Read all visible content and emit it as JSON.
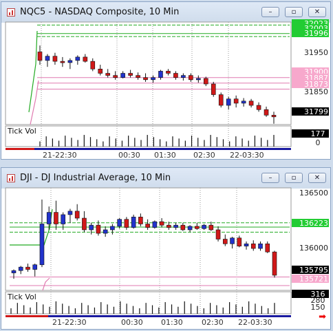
{
  "windows": [
    {
      "id": "nq",
      "title": "NQC5 - NASDAQ Composite, 10 Min",
      "buttons": {
        "minimize": "–",
        "restore": "▫",
        "close": "✕"
      },
      "price_labels": [
        "32023",
        "32003",
        "31996",
        "31950",
        "31900",
        "31887",
        "31873",
        "31850",
        "31799"
      ],
      "volume_labels": {
        "header": "Tick Vol",
        "current": "177",
        "zero": "0"
      },
      "time_labels": [
        "21-22:30",
        "00:30",
        "01:30",
        "02:30",
        "22-03:30"
      ]
    },
    {
      "id": "dji",
      "title": "DJI - DJ Industrial Average, 10 Min",
      "buttons": {
        "minimize": "–",
        "restore": "▫",
        "close": "✕"
      },
      "price_labels": [
        "136500",
        "136223",
        "136000",
        "135795",
        "135721"
      ],
      "volume_labels": {
        "header": "Tick Vol",
        "current": "316",
        "upper": "280",
        "mid": "150"
      },
      "time_labels": [
        "21-22:30",
        "00:30",
        "01:30",
        "02:30",
        "22-03:30"
      ]
    }
  ],
  "chart_data": [
    {
      "type": "candlestick",
      "title": "NQC5 - NASDAQ Composite, 10 Min",
      "ylim": [
        31790,
        32030
      ],
      "x": [
        "21-22:30",
        "00:30",
        "01:30",
        "02:30",
        "22-03:30"
      ],
      "levels": {
        "green": [
          32023,
          32003,
          31996
        ],
        "pink": [
          31900,
          31887,
          31873
        ]
      },
      "last_price": 31799,
      "candles_approx": [
        [
          31960,
          31975,
          31930,
          31940,
          "down"
        ],
        [
          31940,
          31955,
          31925,
          31950,
          "up"
        ],
        [
          31950,
          31958,
          31930,
          31938,
          "down"
        ],
        [
          31938,
          31948,
          31925,
          31935,
          "down"
        ],
        [
          31935,
          31945,
          31920,
          31940,
          "up"
        ],
        [
          31940,
          31952,
          31930,
          31948,
          "up"
        ],
        [
          31948,
          31955,
          31935,
          31938,
          "down"
        ],
        [
          31938,
          31945,
          31915,
          31920,
          "down"
        ],
        [
          31920,
          31930,
          31905,
          31910,
          "down"
        ],
        [
          31910,
          31920,
          31900,
          31905,
          "down"
        ],
        [
          31905,
          31915,
          31895,
          31900,
          "down"
        ],
        [
          31900,
          31915,
          31898,
          31910,
          "up"
        ],
        [
          31910,
          31918,
          31900,
          31905,
          "down"
        ],
        [
          31905,
          31912,
          31895,
          31900,
          "down"
        ],
        [
          31900,
          31910,
          31890,
          31895,
          "down"
        ],
        [
          31895,
          31905,
          31888,
          31900,
          "up"
        ],
        [
          31900,
          31918,
          31895,
          31915,
          "up"
        ],
        [
          31915,
          31920,
          31905,
          31910,
          "down"
        ],
        [
          31910,
          31915,
          31895,
          31900,
          "down"
        ],
        [
          31900,
          31910,
          31893,
          31905,
          "up"
        ],
        [
          31905,
          31910,
          31890,
          31895,
          "down"
        ],
        [
          31895,
          31905,
          31888,
          31898,
          "up"
        ],
        [
          31898,
          31902,
          31880,
          31885,
          "down"
        ],
        [
          31885,
          31890,
          31855,
          31860,
          "down"
        ],
        [
          31860,
          31865,
          31830,
          31835,
          "down"
        ],
        [
          31835,
          31855,
          31825,
          31850,
          "up"
        ],
        [
          31850,
          31858,
          31830,
          31840,
          "down"
        ],
        [
          31840,
          31852,
          31832,
          31845,
          "up"
        ],
        [
          31845,
          31850,
          31830,
          31835,
          "down"
        ],
        [
          31835,
          31842,
          31820,
          31825,
          "down"
        ],
        [
          31825,
          31832,
          31808,
          31812,
          "down"
        ],
        [
          31812,
          31820,
          31792,
          31808,
          "down"
        ]
      ]
    },
    {
      "type": "candlestick",
      "title": "DJI - DJ Industrial Average, 10 Min",
      "ylim": [
        135680,
        136560
      ],
      "x": [
        "21-22:30",
        "00:30",
        "01:30",
        "02:30",
        "22-03:30"
      ],
      "levels": {
        "green": [
          136260,
          136223,
          136180
        ],
        "pink": [
          135795,
          135721
        ]
      },
      "last_price": 135795,
      "candles_approx": [
        [
          135830,
          135860,
          135780,
          135850,
          "up"
        ],
        [
          135850,
          135890,
          135820,
          135880,
          "up"
        ],
        [
          135880,
          135910,
          135840,
          135860,
          "down"
        ],
        [
          135860,
          135910,
          135800,
          135900,
          "up"
        ],
        [
          135900,
          136460,
          135880,
          136250,
          "up"
        ],
        [
          136250,
          136400,
          136200,
          136350,
          "up"
        ],
        [
          136350,
          136450,
          136200,
          136250,
          "down"
        ],
        [
          136250,
          136350,
          136200,
          136330,
          "up"
        ],
        [
          136330,
          136380,
          136260,
          136360,
          "up"
        ],
        [
          136360,
          136420,
          136280,
          136300,
          "down"
        ],
        [
          136300,
          136360,
          136180,
          136200,
          "down"
        ],
        [
          136200,
          136260,
          136160,
          136240,
          "up"
        ],
        [
          136240,
          136280,
          136150,
          136170,
          "down"
        ],
        [
          136170,
          136230,
          136140,
          136200,
          "up"
        ],
        [
          136200,
          136250,
          136160,
          136230,
          "up"
        ],
        [
          136230,
          136300,
          136210,
          136290,
          "up"
        ],
        [
          136290,
          136310,
          136200,
          136220,
          "down"
        ],
        [
          136220,
          136330,
          136210,
          136310,
          "up"
        ],
        [
          136310,
          136340,
          136230,
          136250,
          "down"
        ],
        [
          136250,
          136290,
          136200,
          136220,
          "down"
        ],
        [
          136220,
          136280,
          136210,
          136270,
          "up"
        ],
        [
          136270,
          136300,
          136220,
          136240,
          "down"
        ],
        [
          136240,
          136270,
          136200,
          136220,
          "down"
        ],
        [
          136220,
          136260,
          136200,
          136240,
          "up"
        ],
        [
          136240,
          136260,
          136190,
          136200,
          "down"
        ],
        [
          136200,
          136240,
          136180,
          136230,
          "up"
        ],
        [
          136230,
          136260,
          136200,
          136210,
          "down"
        ],
        [
          136210,
          136250,
          136200,
          136240,
          "up"
        ],
        [
          136240,
          136270,
          136190,
          136200,
          "down"
        ],
        [
          136200,
          136230,
          136100,
          136120,
          "down"
        ],
        [
          136120,
          136160,
          136060,
          136080,
          "down"
        ],
        [
          136080,
          136140,
          136040,
          136130,
          "up"
        ],
        [
          136130,
          136150,
          136050,
          136060,
          "down"
        ],
        [
          136060,
          136100,
          136030,
          136080,
          "up"
        ],
        [
          136080,
          136110,
          136020,
          136040,
          "down"
        ],
        [
          136040,
          136100,
          136020,
          136080,
          "up"
        ],
        [
          136080,
          136100,
          136000,
          136010,
          "down"
        ],
        [
          136010,
          136020,
          135790,
          135810,
          "down"
        ]
      ]
    }
  ]
}
